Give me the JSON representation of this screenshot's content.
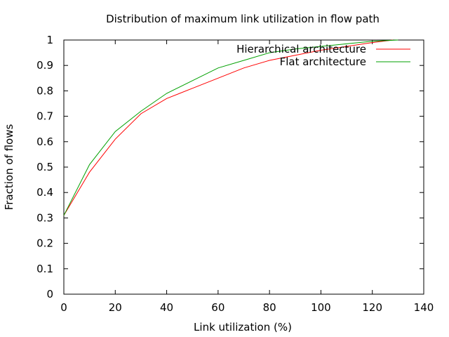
{
  "chart_data": {
    "type": "line",
    "title": "Distribution of maximum link utilization in flow path",
    "xlabel": "Link utilization (%)",
    "ylabel": "Fraction of flows",
    "xlim": [
      0,
      140
    ],
    "ylim": [
      0,
      1
    ],
    "xticks": [
      0,
      20,
      40,
      60,
      80,
      100,
      120,
      140
    ],
    "yticks": [
      0,
      0.1,
      0.2,
      0.3,
      0.4,
      0.5,
      0.6,
      0.7,
      0.8,
      0.9,
      1
    ],
    "xtick_labels": [
      "0",
      "20",
      "40",
      "60",
      "80",
      "100",
      "120",
      "140"
    ],
    "ytick_labels": [
      "0",
      "0.1",
      "0.2",
      "0.3",
      "0.4",
      "0.5",
      "0.6",
      "0.7",
      "0.8",
      "0.9",
      "1"
    ],
    "grid": false,
    "legend_position": "top-right",
    "series": [
      {
        "name": "Hierarchical architecture",
        "color": "#ff0000",
        "x": [
          0,
          10,
          20,
          30,
          40,
          50,
          60,
          70,
          80,
          90,
          100,
          110,
          120,
          128
        ],
        "y": [
          0.31,
          0.48,
          0.61,
          0.71,
          0.77,
          0.81,
          0.85,
          0.89,
          0.92,
          0.94,
          0.96,
          0.975,
          0.99,
          1.0
        ]
      },
      {
        "name": "Flat architecture",
        "color": "#00a000",
        "x": [
          0,
          10,
          20,
          30,
          40,
          50,
          60,
          70,
          80,
          90,
          100,
          110,
          120,
          130
        ],
        "y": [
          0.31,
          0.51,
          0.64,
          0.72,
          0.79,
          0.84,
          0.89,
          0.92,
          0.95,
          0.965,
          0.975,
          0.985,
          0.995,
          1.0
        ]
      }
    ]
  }
}
